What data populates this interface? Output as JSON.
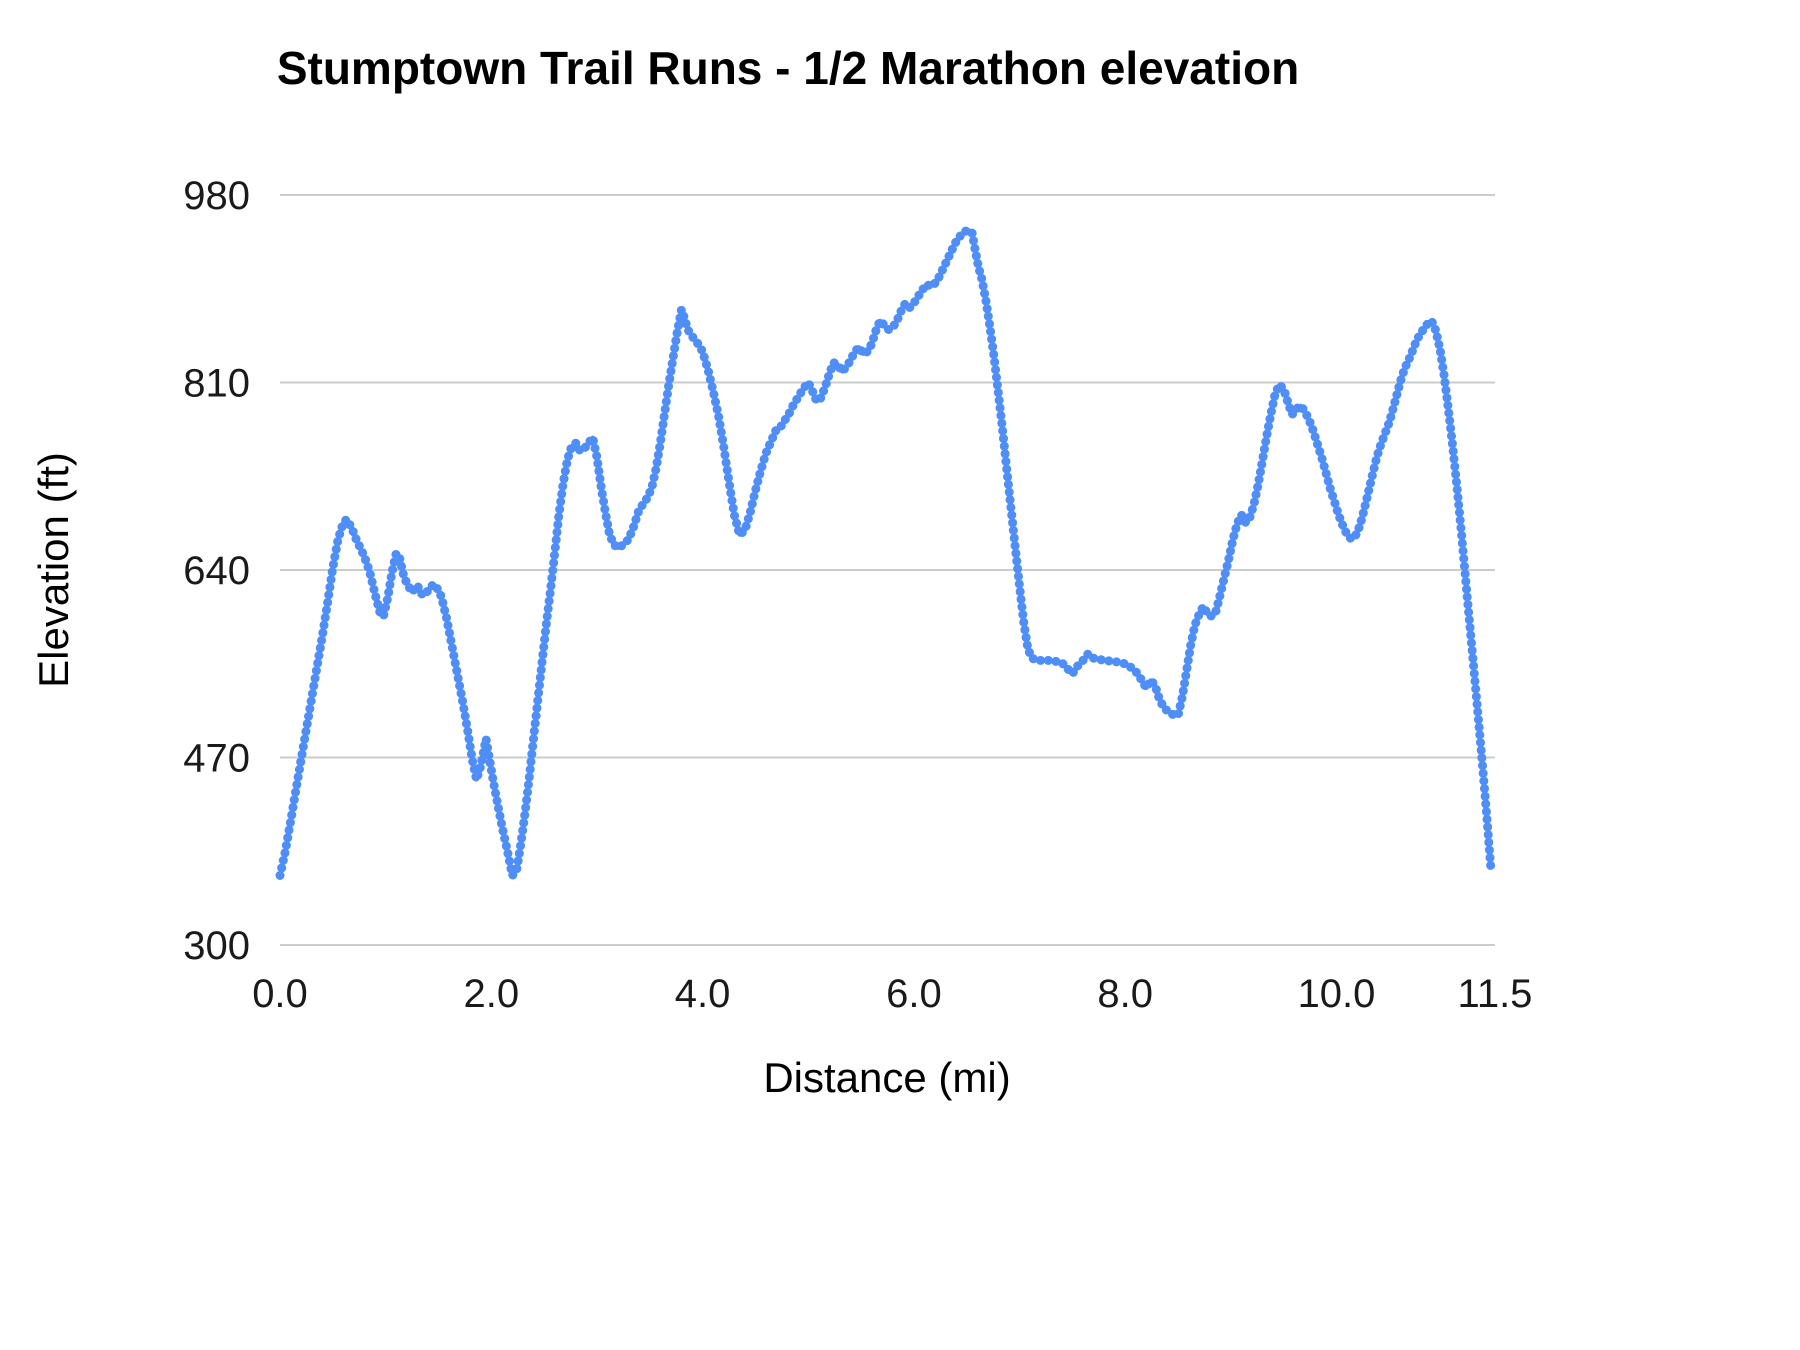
{
  "chart_data": {
    "type": "line",
    "title": "Stumptown Trail Runs - 1/2 Marathon elevation",
    "xlabel": "Distance (mi)",
    "ylabel": "Elevation (ft)",
    "xlim": [
      0,
      11.5
    ],
    "ylim": [
      300,
      980
    ],
    "x_ticks": [
      0.0,
      2.0,
      4.0,
      6.0,
      8.0,
      10.0,
      11.5
    ],
    "x_tick_labels": [
      "0.0",
      "2.0",
      "4.0",
      "6.0",
      "8.0",
      "10.0",
      "11.5"
    ],
    "y_ticks": [
      300,
      470,
      640,
      810,
      980
    ],
    "y_tick_labels": [
      "300",
      "470",
      "640",
      "810",
      "980"
    ],
    "grid": "horizontal",
    "legend": "none",
    "line_color": "#4f8ef7",
    "grid_color": "#cccccc",
    "marker_style": "dense-points",
    "series": [
      {
        "name": "Elevation",
        "points": [
          [
            0.0,
            363
          ],
          [
            0.05,
            385
          ],
          [
            0.1,
            412
          ],
          [
            0.15,
            440
          ],
          [
            0.2,
            468
          ],
          [
            0.25,
            496
          ],
          [
            0.3,
            524
          ],
          [
            0.35,
            552
          ],
          [
            0.4,
            580
          ],
          [
            0.45,
            610
          ],
          [
            0.5,
            642
          ],
          [
            0.55,
            668
          ],
          [
            0.6,
            683
          ],
          [
            0.63,
            686
          ],
          [
            0.68,
            678
          ],
          [
            0.72,
            668
          ],
          [
            0.76,
            660
          ],
          [
            0.8,
            652
          ],
          [
            0.85,
            638
          ],
          [
            0.9,
            618
          ],
          [
            0.95,
            600
          ],
          [
            0.98,
            598
          ],
          [
            1.02,
            615
          ],
          [
            1.06,
            638
          ],
          [
            1.1,
            655
          ],
          [
            1.13,
            652
          ],
          [
            1.17,
            635
          ],
          [
            1.2,
            628
          ],
          [
            1.25,
            620
          ],
          [
            1.3,
            626
          ],
          [
            1.35,
            617
          ],
          [
            1.4,
            621
          ],
          [
            1.45,
            627
          ],
          [
            1.5,
            622
          ],
          [
            1.53,
            615
          ],
          [
            1.58,
            595
          ],
          [
            1.63,
            570
          ],
          [
            1.68,
            545
          ],
          [
            1.73,
            520
          ],
          [
            1.78,
            492
          ],
          [
            1.82,
            468
          ],
          [
            1.86,
            450
          ],
          [
            1.9,
            462
          ],
          [
            1.95,
            487
          ],
          [
            1.98,
            470
          ],
          [
            2.02,
            448
          ],
          [
            2.06,
            428
          ],
          [
            2.1,
            408
          ],
          [
            2.15,
            386
          ],
          [
            2.2,
            363
          ],
          [
            2.24,
            368
          ],
          [
            2.28,
            392
          ],
          [
            2.32,
            420
          ],
          [
            2.36,
            452
          ],
          [
            2.4,
            488
          ],
          [
            2.44,
            522
          ],
          [
            2.48,
            556
          ],
          [
            2.52,
            590
          ],
          [
            2.56,
            622
          ],
          [
            2.6,
            655
          ],
          [
            2.64,
            690
          ],
          [
            2.68,
            718
          ],
          [
            2.72,
            740
          ],
          [
            2.76,
            752
          ],
          [
            2.8,
            755
          ],
          [
            2.84,
            748
          ],
          [
            2.88,
            750
          ],
          [
            2.92,
            755
          ],
          [
            2.96,
            760
          ],
          [
            3.0,
            742
          ],
          [
            3.04,
            715
          ],
          [
            3.08,
            692
          ],
          [
            3.12,
            672
          ],
          [
            3.16,
            663
          ],
          [
            3.2,
            660
          ],
          [
            3.25,
            663
          ],
          [
            3.3,
            668
          ],
          [
            3.35,
            680
          ],
          [
            3.4,
            695
          ],
          [
            3.44,
            700
          ],
          [
            3.48,
            706
          ],
          [
            3.52,
            715
          ],
          [
            3.56,
            732
          ],
          [
            3.6,
            755
          ],
          [
            3.64,
            782
          ],
          [
            3.68,
            808
          ],
          [
            3.72,
            832
          ],
          [
            3.76,
            856
          ],
          [
            3.8,
            876
          ],
          [
            3.83,
            868
          ],
          [
            3.86,
            858
          ],
          [
            3.9,
            852
          ],
          [
            3.95,
            846
          ],
          [
            4.0,
            838
          ],
          [
            4.05,
            822
          ],
          [
            4.1,
            802
          ],
          [
            4.15,
            780
          ],
          [
            4.2,
            752
          ],
          [
            4.25,
            720
          ],
          [
            4.3,
            690
          ],
          [
            4.35,
            672
          ],
          [
            4.4,
            676
          ],
          [
            4.45,
            692
          ],
          [
            4.5,
            712
          ],
          [
            4.55,
            730
          ],
          [
            4.6,
            746
          ],
          [
            4.65,
            757
          ],
          [
            4.7,
            768
          ],
          [
            4.74,
            770
          ],
          [
            4.78,
            776
          ],
          [
            4.82,
            782
          ],
          [
            4.86,
            790
          ],
          [
            4.9,
            796
          ],
          [
            4.95,
            804
          ],
          [
            5.0,
            810
          ],
          [
            5.04,
            802
          ],
          [
            5.08,
            793
          ],
          [
            5.12,
            796
          ],
          [
            5.16,
            806
          ],
          [
            5.2,
            818
          ],
          [
            5.24,
            828
          ],
          [
            5.28,
            826
          ],
          [
            5.32,
            820
          ],
          [
            5.36,
            824
          ],
          [
            5.4,
            830
          ],
          [
            5.44,
            838
          ],
          [
            5.48,
            842
          ],
          [
            5.52,
            836
          ],
          [
            5.56,
            838
          ],
          [
            5.6,
            845
          ],
          [
            5.64,
            857
          ],
          [
            5.68,
            866
          ],
          [
            5.72,
            862
          ],
          [
            5.76,
            858
          ],
          [
            5.8,
            860
          ],
          [
            5.84,
            866
          ],
          [
            5.88,
            875
          ],
          [
            5.92,
            882
          ],
          [
            5.96,
            878
          ],
          [
            6.0,
            882
          ],
          [
            6.04,
            888
          ],
          [
            6.08,
            894
          ],
          [
            6.12,
            899
          ],
          [
            6.16,
            897
          ],
          [
            6.2,
            900
          ],
          [
            6.24,
            906
          ],
          [
            6.28,
            914
          ],
          [
            6.32,
            922
          ],
          [
            6.36,
            930
          ],
          [
            6.4,
            938
          ],
          [
            6.44,
            943
          ],
          [
            6.48,
            947
          ],
          [
            6.52,
            948
          ],
          [
            6.55,
            946
          ],
          [
            6.58,
            930
          ],
          [
            6.61,
            915
          ],
          [
            6.64,
            905
          ],
          [
            6.68,
            885
          ],
          [
            6.72,
            860
          ],
          [
            6.76,
            832
          ],
          [
            6.8,
            800
          ],
          [
            6.84,
            766
          ],
          [
            6.88,
            730
          ],
          [
            6.92,
            695
          ],
          [
            6.96,
            660
          ],
          [
            7.0,
            625
          ],
          [
            7.04,
            592
          ],
          [
            7.08,
            568
          ],
          [
            7.12,
            560
          ],
          [
            7.16,
            558
          ],
          [
            7.2,
            558
          ],
          [
            7.3,
            558
          ],
          [
            7.4,
            556
          ],
          [
            7.45,
            551
          ],
          [
            7.5,
            546
          ],
          [
            7.55,
            553
          ],
          [
            7.6,
            558
          ],
          [
            7.65,
            564
          ],
          [
            7.7,
            560
          ],
          [
            7.8,
            558
          ],
          [
            7.9,
            557
          ],
          [
            8.0,
            555
          ],
          [
            8.05,
            552
          ],
          [
            8.1,
            548
          ],
          [
            8.15,
            541
          ],
          [
            8.2,
            533
          ],
          [
            8.24,
            540
          ],
          [
            8.28,
            536
          ],
          [
            8.32,
            524
          ],
          [
            8.36,
            516
          ],
          [
            8.4,
            512
          ],
          [
            8.45,
            509
          ],
          [
            8.5,
            508
          ],
          [
            8.54,
            525
          ],
          [
            8.58,
            548
          ],
          [
            8.62,
            572
          ],
          [
            8.66,
            590
          ],
          [
            8.7,
            600
          ],
          [
            8.74,
            607
          ],
          [
            8.78,
            600
          ],
          [
            8.82,
            598
          ],
          [
            8.86,
            603
          ],
          [
            8.9,
            618
          ],
          [
            8.94,
            634
          ],
          [
            8.98,
            650
          ],
          [
            9.02,
            668
          ],
          [
            9.06,
            682
          ],
          [
            9.1,
            690
          ],
          [
            9.14,
            683
          ],
          [
            9.18,
            688
          ],
          [
            9.22,
            700
          ],
          [
            9.26,
            718
          ],
          [
            9.3,
            740
          ],
          [
            9.34,
            762
          ],
          [
            9.38,
            782
          ],
          [
            9.42,
            800
          ],
          [
            9.46,
            808
          ],
          [
            9.5,
            804
          ],
          [
            9.54,
            792
          ],
          [
            9.58,
            781
          ],
          [
            9.62,
            786
          ],
          [
            9.66,
            789
          ],
          [
            9.7,
            784
          ],
          [
            9.74,
            776
          ],
          [
            9.78,
            766
          ],
          [
            9.82,
            754
          ],
          [
            9.86,
            742
          ],
          [
            9.9,
            728
          ],
          [
            9.94,
            714
          ],
          [
            9.98,
            702
          ],
          [
            10.02,
            690
          ],
          [
            10.06,
            680
          ],
          [
            10.1,
            672
          ],
          [
            10.14,
            668
          ],
          [
            10.18,
            671
          ],
          [
            10.22,
            680
          ],
          [
            10.26,
            694
          ],
          [
            10.3,
            710
          ],
          [
            10.34,
            726
          ],
          [
            10.38,
            742
          ],
          [
            10.42,
            754
          ],
          [
            10.46,
            764
          ],
          [
            10.5,
            774
          ],
          [
            10.54,
            788
          ],
          [
            10.58,
            802
          ],
          [
            10.62,
            816
          ],
          [
            10.66,
            826
          ],
          [
            10.7,
            834
          ],
          [
            10.74,
            844
          ],
          [
            10.78,
            852
          ],
          [
            10.82,
            858
          ],
          [
            10.86,
            863
          ],
          [
            10.9,
            866
          ],
          [
            10.94,
            857
          ],
          [
            10.98,
            840
          ],
          [
            11.02,
            815
          ],
          [
            11.06,
            785
          ],
          [
            11.1,
            752
          ],
          [
            11.14,
            715
          ],
          [
            11.18,
            676
          ],
          [
            11.22,
            634
          ],
          [
            11.26,
            592
          ],
          [
            11.3,
            550
          ],
          [
            11.34,
            508
          ],
          [
            11.38,
            465
          ],
          [
            11.42,
            420
          ],
          [
            11.46,
            370
          ]
        ]
      }
    ]
  }
}
